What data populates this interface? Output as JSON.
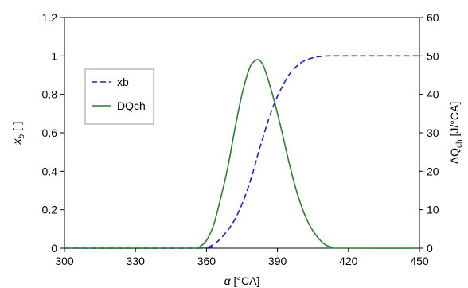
{
  "chart_data": {
    "type": "line",
    "x_axis": {
      "label_symbol": "α",
      "label_unit": " [°CA]",
      "range": [
        300,
        450
      ],
      "ticks": [
        300,
        330,
        360,
        390,
        420,
        450
      ]
    },
    "y_left": {
      "label_base": "x",
      "label_sub": "b",
      "label_unit": " [-]",
      "range": [
        0,
        1.2
      ],
      "ticks": [
        0,
        0.2,
        0.4,
        0.6,
        0.8,
        1,
        1.2
      ],
      "tick_labels": [
        "0",
        "0.2",
        "0.4",
        "0.6",
        "0.8",
        "1",
        "1.2"
      ]
    },
    "y_right": {
      "label_base": "ΔQ",
      "label_sub": "ch",
      "label_unit": " [J/°CA]",
      "range": [
        0,
        60
      ],
      "ticks": [
        0,
        10,
        20,
        30,
        40,
        50,
        60
      ],
      "tick_labels": [
        "0",
        "10",
        "20",
        "30",
        "40",
        "50",
        "60"
      ]
    },
    "grid": false,
    "legend": {
      "placement": "left-upper"
    },
    "series": [
      {
        "name": "xb",
        "axis": "left",
        "color": "#1f1fbf",
        "dash": "dashed",
        "x": [
          300,
          358,
          360,
          362,
          364,
          366,
          368,
          370,
          372,
          374,
          376,
          378,
          380,
          382,
          384,
          386,
          388,
          390,
          392,
          394,
          396,
          398,
          400,
          402,
          404,
          406,
          408,
          410,
          412,
          414,
          416,
          420,
          430,
          440,
          450
        ],
        "y": [
          0,
          0,
          0.003,
          0.012,
          0.028,
          0.05,
          0.078,
          0.11,
          0.15,
          0.2,
          0.26,
          0.33,
          0.41,
          0.5,
          0.58,
          0.66,
          0.73,
          0.79,
          0.84,
          0.885,
          0.92,
          0.945,
          0.965,
          0.978,
          0.987,
          0.993,
          0.997,
          0.999,
          1,
          1,
          1,
          1,
          1,
          1,
          1
        ]
      },
      {
        "name": "DQch",
        "axis": "right",
        "color": "#2e7d32",
        "dash": "solid",
        "x": [
          300,
          355,
          357,
          360,
          363,
          366,
          369,
          372,
          375,
          378,
          380,
          382,
          384,
          386,
          389,
          392,
          395,
          398,
          401,
          404,
          407,
          410,
          413,
          415,
          450
        ],
        "y": [
          0,
          0,
          0.3,
          2,
          6,
          13,
          21,
          31,
          40,
          46.5,
          48.5,
          49,
          47.5,
          44,
          37.5,
          30,
          22,
          15,
          9.5,
          5.5,
          2.8,
          1,
          0.2,
          0,
          0
        ]
      }
    ]
  }
}
